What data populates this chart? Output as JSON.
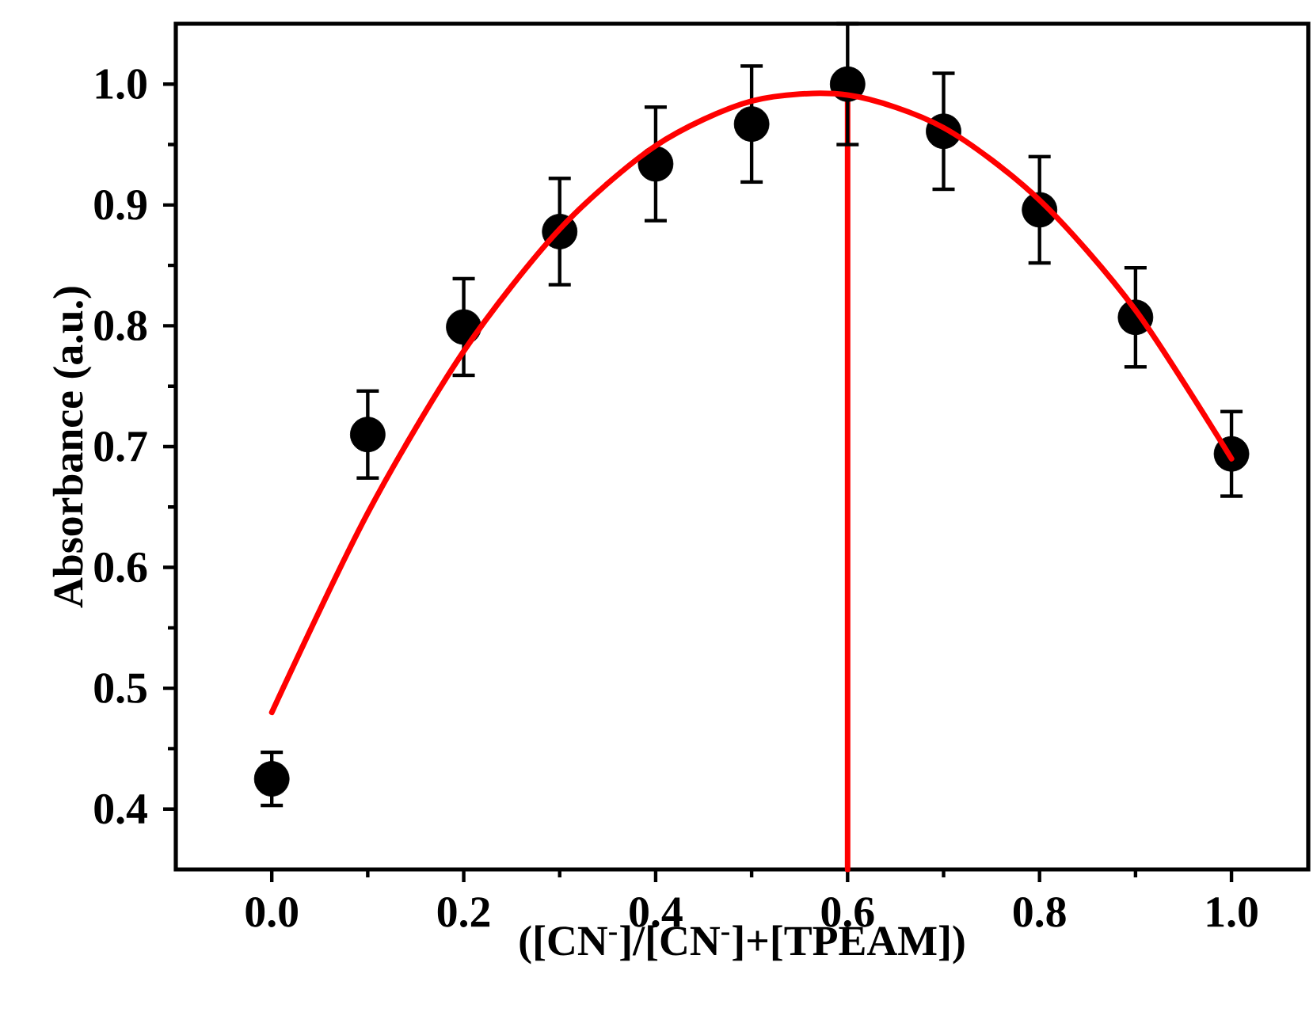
{
  "chart_data": {
    "type": "scatter",
    "xlabel": "([CN$^{-}$]/[CN$^{-}$]+[TPEAM])",
    "ylabel": "Absorbance (a.u.)",
    "xlim": [
      -0.1,
      1.08
    ],
    "ylim": [
      0.35,
      1.05
    ],
    "xticks": [
      {
        "value": 0,
        "label": "0.0"
      },
      0.2,
      0.4,
      0.6,
      0.8,
      {
        "value": 1,
        "label": "1.0"
      }
    ],
    "yticks": [
      0.4,
      0.5,
      0.6,
      0.7,
      0.8,
      0.9,
      {
        "value": 1,
        "label": "1.0"
      }
    ],
    "series": [
      {
        "type": "line",
        "color": "#ff0000",
        "x": [
          0.6,
          0.6
        ],
        "values": [
          0.35,
          1.0
        ]
      },
      {
        "color": "#000000",
        "marker": "circle",
        "x": [
          0,
          0.1,
          0.2,
          0.3,
          0.4,
          0.5,
          0.6,
          0.7,
          0.8,
          0.9,
          1.0
        ],
        "values": [
          0.425,
          0.71,
          0.799,
          0.878,
          0.934,
          0.967,
          1.0,
          0.961,
          0.896,
          0.807,
          0.694
        ],
        "errors": [
          0.022,
          0.036,
          0.04,
          0.044,
          0.047,
          0.048,
          0.05,
          0.048,
          0.044,
          0.041,
          0.035
        ]
      },
      {
        "type": "line",
        "color": "#ff0000",
        "x": [
          0,
          0.1,
          0.2,
          0.3,
          0.4,
          0.5,
          0.6,
          0.7,
          0.8,
          0.9,
          1.0
        ],
        "values": [
          0.48,
          0.645,
          0.779,
          0.88,
          0.949,
          0.986,
          0.991,
          0.964,
          0.904,
          0.813,
          0.69
        ]
      }
    ]
  }
}
